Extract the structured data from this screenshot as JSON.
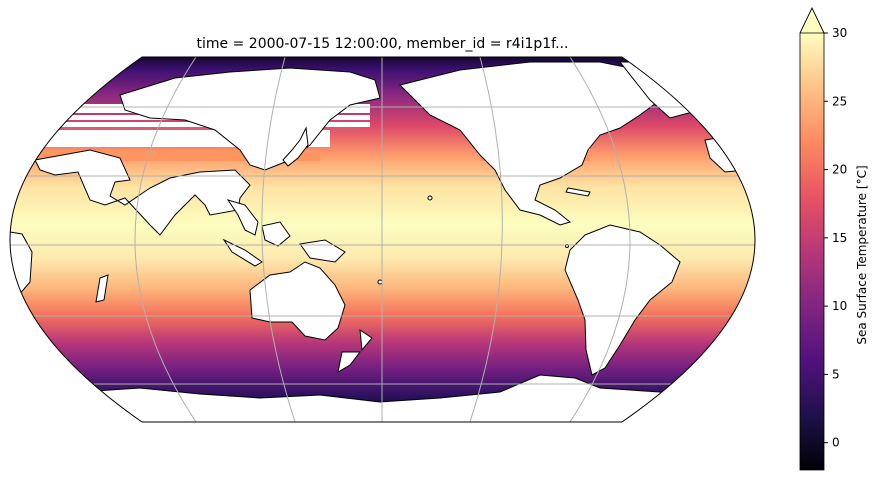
{
  "figure": {
    "title": "time = 2000-07-15 12:00:00, member_id = r4i1p1f...",
    "projection": "robinson",
    "central_longitude": 180,
    "gridlines": true
  },
  "colorbar": {
    "label": "Sea Surface Temperature [°C]",
    "ticks": [
      "0",
      "5",
      "10",
      "15",
      "20",
      "25",
      "30"
    ],
    "tick_values": [
      0,
      5,
      10,
      15,
      20,
      25,
      30
    ],
    "vmin": -2,
    "vmax": 30,
    "extend": "max",
    "colormap": "magma"
  },
  "colors": {
    "land": "#ffffff",
    "coastline": "#000000",
    "gridline": "#b0b0b0",
    "stripe_artifact": "#ff9560",
    "stripe_artifact_dark": "#d85c6a"
  }
}
